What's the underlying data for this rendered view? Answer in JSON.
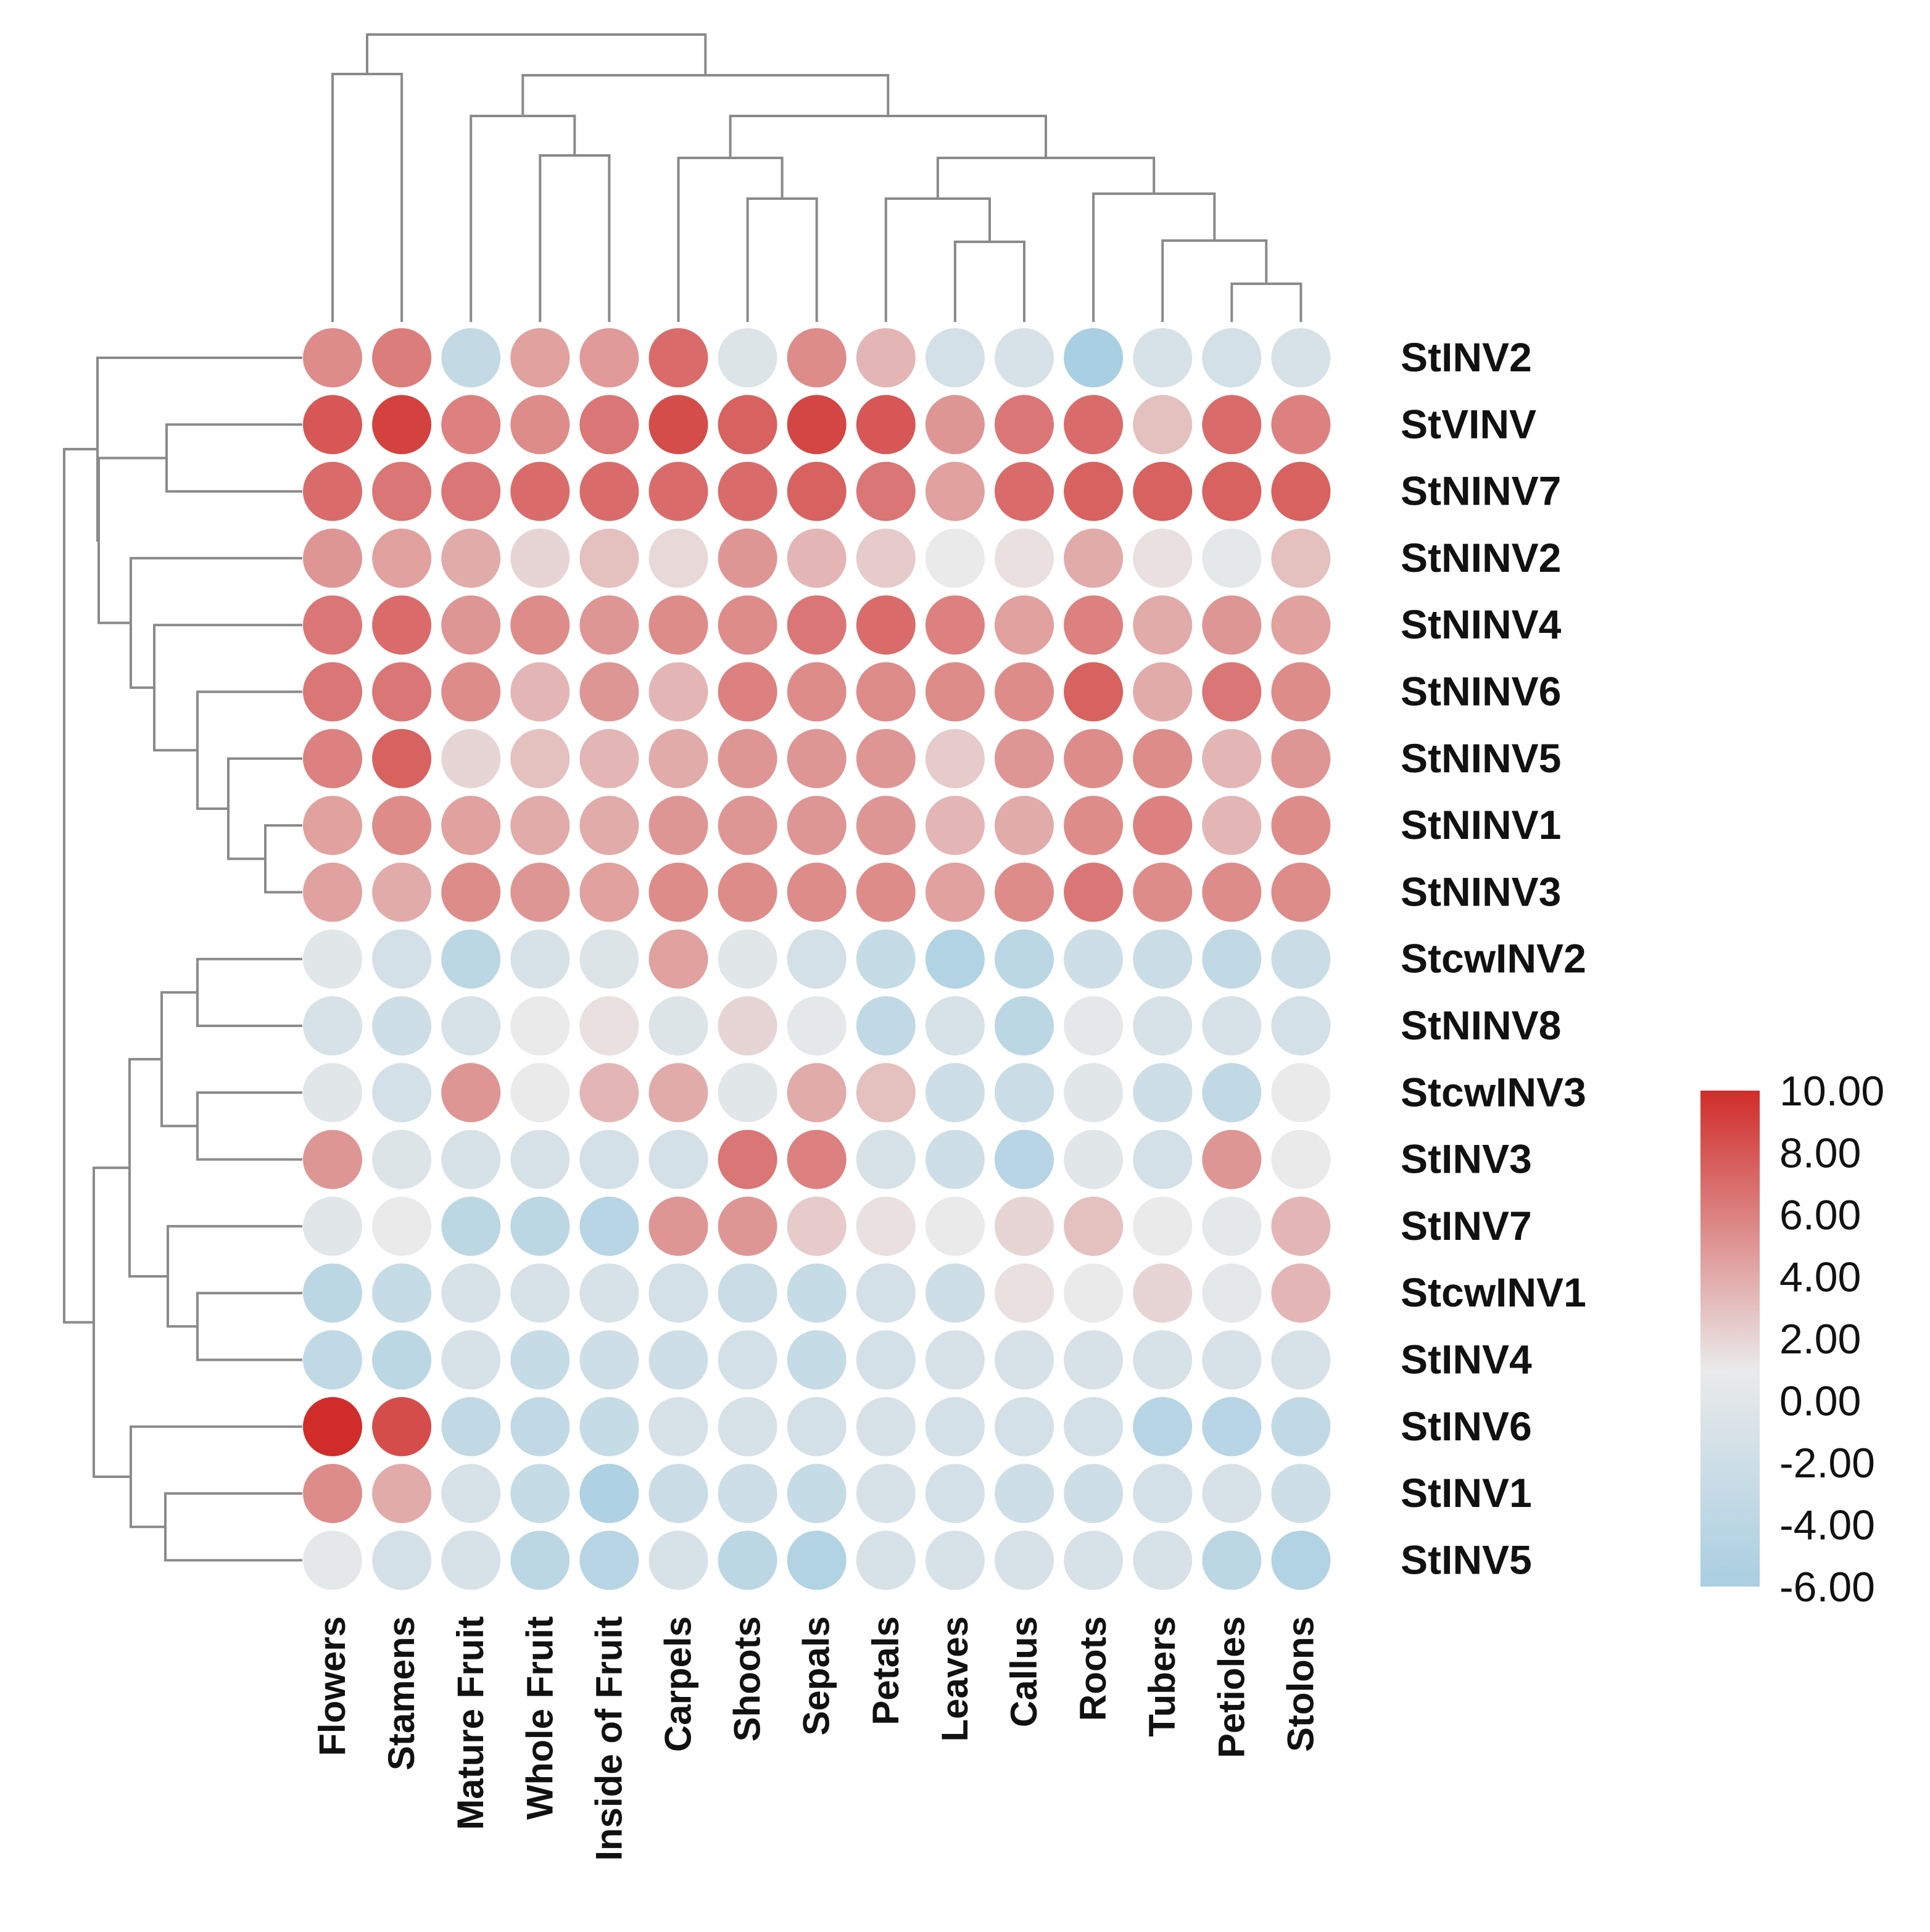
{
  "chart_data": {
    "type": "heatmap",
    "marker": "circle",
    "title": "",
    "columns": [
      "Flowers",
      "Stamens",
      "Mature Fruit",
      "Whole Fruit",
      "Inside of Fruit",
      "Carpels",
      "Shoots",
      "Sepals",
      "Petals",
      "Leaves",
      "Callus",
      "Roots",
      "Tubers",
      "Petioles",
      "Stolons"
    ],
    "rows": [
      "StINV2",
      "StVINV",
      "StNINV7",
      "StNINV2",
      "StNINV4",
      "StNINV6",
      "StNINV5",
      "StNINV1",
      "StNINV3",
      "StcwINV2",
      "StNINV8",
      "StcwINV3",
      "StINV3",
      "StINV7",
      "StcwINV1",
      "StINV4",
      "StINV6",
      "StINV1",
      "StINV5"
    ],
    "values": [
      [
        5.5,
        6.2,
        -3.2,
        4.5,
        4.8,
        7.0,
        -0.5,
        5.5,
        3.5,
        -1.5,
        -1.0,
        -6.0,
        -1.0,
        -1.5,
        -1.0
      ],
      [
        8.0,
        9.0,
        6.0,
        5.5,
        6.5,
        8.5,
        7.5,
        8.8,
        8.0,
        5.0,
        6.5,
        7.0,
        3.0,
        7.0,
        6.0
      ],
      [
        7.0,
        6.5,
        6.5,
        7.0,
        7.0,
        7.0,
        7.0,
        7.5,
        6.5,
        4.5,
        7.0,
        7.5,
        7.5,
        7.5,
        7.5
      ],
      [
        5.0,
        4.5,
        4.0,
        2.0,
        3.0,
        1.8,
        5.0,
        3.5,
        2.5,
        1.0,
        1.5,
        4.0,
        1.5,
        0.5,
        3.0
      ],
      [
        6.5,
        7.0,
        5.0,
        5.5,
        5.0,
        5.5,
        5.5,
        6.5,
        7.0,
        6.0,
        4.5,
        6.0,
        4.0,
        5.0,
        4.5
      ],
      [
        6.5,
        6.5,
        5.5,
        3.5,
        5.0,
        3.5,
        6.0,
        5.5,
        5.5,
        5.5,
        5.5,
        7.5,
        4.0,
        6.5,
        5.5
      ],
      [
        6.0,
        7.5,
        2.0,
        3.0,
        3.5,
        4.0,
        5.0,
        5.0,
        5.0,
        2.5,
        5.0,
        5.5,
        5.5,
        3.5,
        5.0
      ],
      [
        4.5,
        5.5,
        4.5,
        4.0,
        4.0,
        5.0,
        5.0,
        5.0,
        5.0,
        3.5,
        4.0,
        5.5,
        6.0,
        3.5,
        5.5
      ],
      [
        4.5,
        4.0,
        5.5,
        5.0,
        4.5,
        5.5,
        5.5,
        5.5,
        5.5,
        4.5,
        5.5,
        6.5,
        5.5,
        5.5,
        5.5
      ],
      [
        0.0,
        -1.5,
        -4.0,
        -1.0,
        -0.5,
        4.5,
        0.0,
        -1.5,
        -3.0,
        -5.0,
        -4.0,
        -2.0,
        -2.5,
        -3.5,
        -2.5
      ],
      [
        -1.0,
        -2.0,
        -1.0,
        1.0,
        1.5,
        -0.5,
        2.0,
        0.5,
        -3.5,
        -1.0,
        -4.0,
        0.5,
        -1.0,
        -1.0,
        -1.5
      ],
      [
        0.0,
        -1.5,
        5.0,
        1.0,
        3.5,
        4.0,
        0.0,
        4.0,
        3.0,
        -2.0,
        -2.5,
        0.0,
        -2.0,
        -3.5,
        1.0
      ],
      [
        5.0,
        -0.5,
        -1.0,
        -1.0,
        -1.5,
        -1.5,
        6.5,
        6.0,
        -1.0,
        -2.0,
        -4.5,
        0.0,
        -1.5,
        5.0,
        1.0
      ],
      [
        0.0,
        1.0,
        -4.0,
        -4.0,
        -4.5,
        5.0,
        5.0,
        2.5,
        1.5,
        1.0,
        2.0,
        3.0,
        1.0,
        0.5,
        3.5
      ],
      [
        -4.0,
        -3.0,
        -1.0,
        -1.0,
        -1.0,
        -1.5,
        -2.5,
        -3.0,
        -1.5,
        -2.0,
        1.5,
        1.0,
        2.0,
        0.5,
        3.5
      ],
      [
        -3.5,
        -4.0,
        -1.0,
        -3.0,
        -2.0,
        -2.0,
        -1.5,
        -3.0,
        -1.5,
        -1.0,
        -1.0,
        -1.0,
        -1.0,
        -1.0,
        -1.0
      ],
      [
        10.0,
        8.5,
        -3.5,
        -3.5,
        -3.0,
        -1.0,
        -1.0,
        -1.5,
        -1.0,
        -1.5,
        -1.5,
        -1.5,
        -4.5,
        -4.5,
        -3.5
      ],
      [
        5.5,
        4.0,
        -1.0,
        -3.0,
        -5.5,
        -2.5,
        -2.0,
        -3.0,
        -1.0,
        -1.5,
        -2.0,
        -2.0,
        -1.5,
        -1.0,
        -2.0
      ],
      [
        0.5,
        -1.5,
        -1.0,
        -4.0,
        -4.5,
        -1.0,
        -4.0,
        -5.0,
        -1.0,
        -1.0,
        -1.0,
        -1.0,
        -1.0,
        -4.0,
        -5.0
      ]
    ],
    "colorscale": {
      "min": -6.0,
      "max": 10.0,
      "colors": [
        {
          "value": -6.0,
          "color": "#a9cfe2"
        },
        {
          "value": 1.0,
          "color": "#eaeaea"
        },
        {
          "value": 10.0,
          "color": "#d02d2a"
        }
      ]
    },
    "legend": {
      "position": "right",
      "ticks": [
        "10.00",
        "8.00",
        "6.00",
        "4.00",
        "2.00",
        "0.00",
        "-2.00",
        "-4.00",
        "-6.00"
      ]
    },
    "column_dendrogram": true,
    "row_dendrogram": true
  }
}
